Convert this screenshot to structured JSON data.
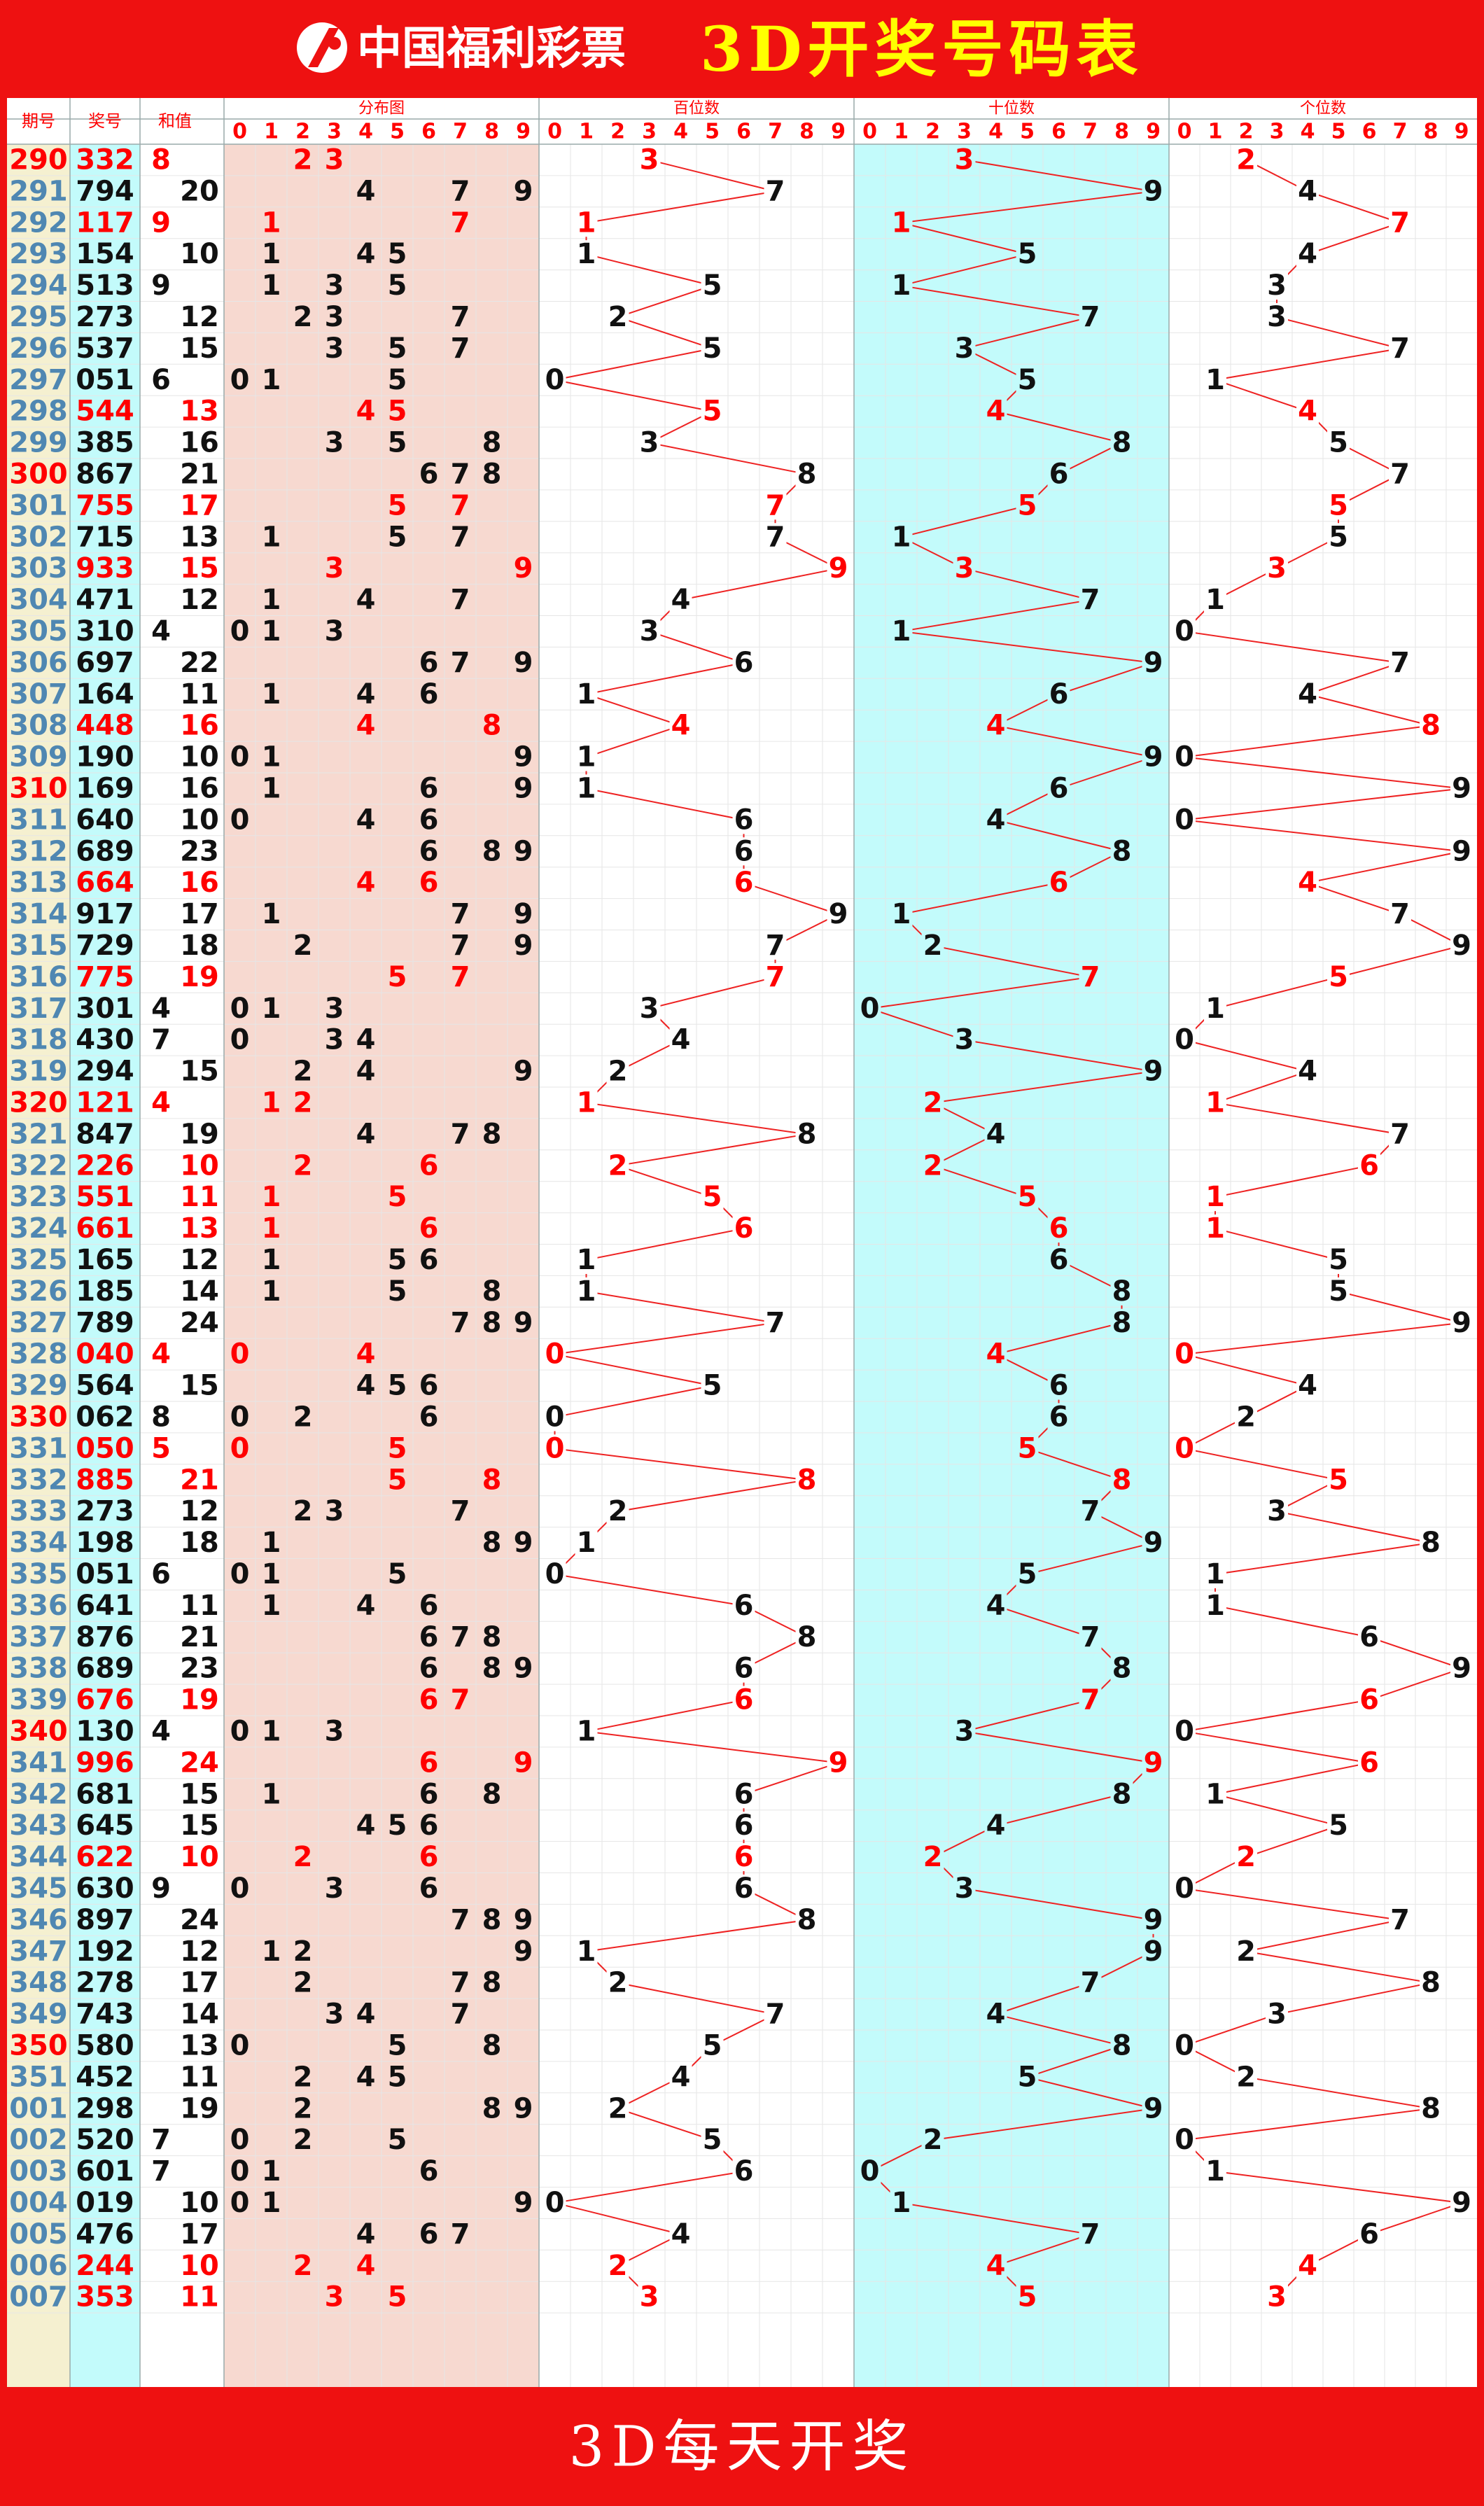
{
  "header": {
    "brand": "中国福利彩票",
    "title": "3D开奖号码表"
  },
  "footer": {
    "text": "3D每天开奖"
  },
  "columns": {
    "issue": "期号",
    "number": "奖号",
    "sum": "和值",
    "dist": "分布图",
    "hundreds": "百位数",
    "tens": "十位数",
    "units": "个位数",
    "digits": [
      "0",
      "1",
      "2",
      "3",
      "4",
      "5",
      "6",
      "7",
      "8",
      "9"
    ]
  },
  "colors": {
    "red": "#ff0000",
    "frame": "#ee1111",
    "pink": "#f7d9d0",
    "cyan": "#c3fbfb",
    "issue_bg": "#f5f0d0",
    "issue_text": "#4f87b2",
    "grid": "#e6e6e6",
    "line": "#ee2222"
  },
  "chart_data": {
    "type": "table",
    "rows": [
      {
        "issue": "290",
        "number": "332",
        "sum": "8"
      },
      {
        "issue": "291",
        "number": "794",
        "sum": "20"
      },
      {
        "issue": "292",
        "number": "117",
        "sum": "9"
      },
      {
        "issue": "293",
        "number": "154",
        "sum": "10"
      },
      {
        "issue": "294",
        "number": "513",
        "sum": "9"
      },
      {
        "issue": "295",
        "number": "273",
        "sum": "12"
      },
      {
        "issue": "296",
        "number": "537",
        "sum": "15"
      },
      {
        "issue": "297",
        "number": "051",
        "sum": "6"
      },
      {
        "issue": "298",
        "number": "544",
        "sum": "13"
      },
      {
        "issue": "299",
        "number": "385",
        "sum": "16"
      },
      {
        "issue": "300",
        "number": "867",
        "sum": "21"
      },
      {
        "issue": "301",
        "number": "755",
        "sum": "17"
      },
      {
        "issue": "302",
        "number": "715",
        "sum": "13"
      },
      {
        "issue": "303",
        "number": "933",
        "sum": "15"
      },
      {
        "issue": "304",
        "number": "471",
        "sum": "12"
      },
      {
        "issue": "305",
        "number": "310",
        "sum": "4"
      },
      {
        "issue": "306",
        "number": "697",
        "sum": "22"
      },
      {
        "issue": "307",
        "number": "164",
        "sum": "11"
      },
      {
        "issue": "308",
        "number": "448",
        "sum": "16"
      },
      {
        "issue": "309",
        "number": "190",
        "sum": "10"
      },
      {
        "issue": "310",
        "number": "169",
        "sum": "16"
      },
      {
        "issue": "311",
        "number": "640",
        "sum": "10"
      },
      {
        "issue": "312",
        "number": "689",
        "sum": "23"
      },
      {
        "issue": "313",
        "number": "664",
        "sum": "16"
      },
      {
        "issue": "314",
        "number": "917",
        "sum": "17"
      },
      {
        "issue": "315",
        "number": "729",
        "sum": "18"
      },
      {
        "issue": "316",
        "number": "775",
        "sum": "19"
      },
      {
        "issue": "317",
        "number": "301",
        "sum": "4"
      },
      {
        "issue": "318",
        "number": "430",
        "sum": "7"
      },
      {
        "issue": "319",
        "number": "294",
        "sum": "15"
      },
      {
        "issue": "320",
        "number": "121",
        "sum": "4"
      },
      {
        "issue": "321",
        "number": "847",
        "sum": "19"
      },
      {
        "issue": "322",
        "number": "226",
        "sum": "10"
      },
      {
        "issue": "323",
        "number": "551",
        "sum": "11"
      },
      {
        "issue": "324",
        "number": "661",
        "sum": "13"
      },
      {
        "issue": "325",
        "number": "165",
        "sum": "12"
      },
      {
        "issue": "326",
        "number": "185",
        "sum": "14"
      },
      {
        "issue": "327",
        "number": "789",
        "sum": "24"
      },
      {
        "issue": "328",
        "number": "040",
        "sum": "4"
      },
      {
        "issue": "329",
        "number": "564",
        "sum": "15"
      },
      {
        "issue": "330",
        "number": "062",
        "sum": "8"
      },
      {
        "issue": "331",
        "number": "050",
        "sum": "5"
      },
      {
        "issue": "332",
        "number": "885",
        "sum": "21"
      },
      {
        "issue": "333",
        "number": "273",
        "sum": "12"
      },
      {
        "issue": "334",
        "number": "198",
        "sum": "18"
      },
      {
        "issue": "335",
        "number": "051",
        "sum": "6"
      },
      {
        "issue": "336",
        "number": "641",
        "sum": "11"
      },
      {
        "issue": "337",
        "number": "876",
        "sum": "21"
      },
      {
        "issue": "338",
        "number": "689",
        "sum": "23"
      },
      {
        "issue": "339",
        "number": "676",
        "sum": "19"
      },
      {
        "issue": "340",
        "number": "130",
        "sum": "4"
      },
      {
        "issue": "341",
        "number": "996",
        "sum": "24"
      },
      {
        "issue": "342",
        "number": "681",
        "sum": "15"
      },
      {
        "issue": "343",
        "number": "645",
        "sum": "15"
      },
      {
        "issue": "344",
        "number": "622",
        "sum": "10"
      },
      {
        "issue": "345",
        "number": "630",
        "sum": "9"
      },
      {
        "issue": "346",
        "number": "897",
        "sum": "24"
      },
      {
        "issue": "347",
        "number": "192",
        "sum": "12"
      },
      {
        "issue": "348",
        "number": "278",
        "sum": "17"
      },
      {
        "issue": "349",
        "number": "743",
        "sum": "14"
      },
      {
        "issue": "350",
        "number": "580",
        "sum": "13"
      },
      {
        "issue": "351",
        "number": "452",
        "sum": "11"
      },
      {
        "issue": "001",
        "number": "298",
        "sum": "19"
      },
      {
        "issue": "002",
        "number": "520",
        "sum": "7"
      },
      {
        "issue": "003",
        "number": "601",
        "sum": "7"
      },
      {
        "issue": "004",
        "number": "019",
        "sum": "10"
      },
      {
        "issue": "005",
        "number": "476",
        "sum": "17"
      },
      {
        "issue": "006",
        "number": "244",
        "sum": "10"
      },
      {
        "issue": "007",
        "number": "353",
        "sum": "11"
      }
    ]
  }
}
